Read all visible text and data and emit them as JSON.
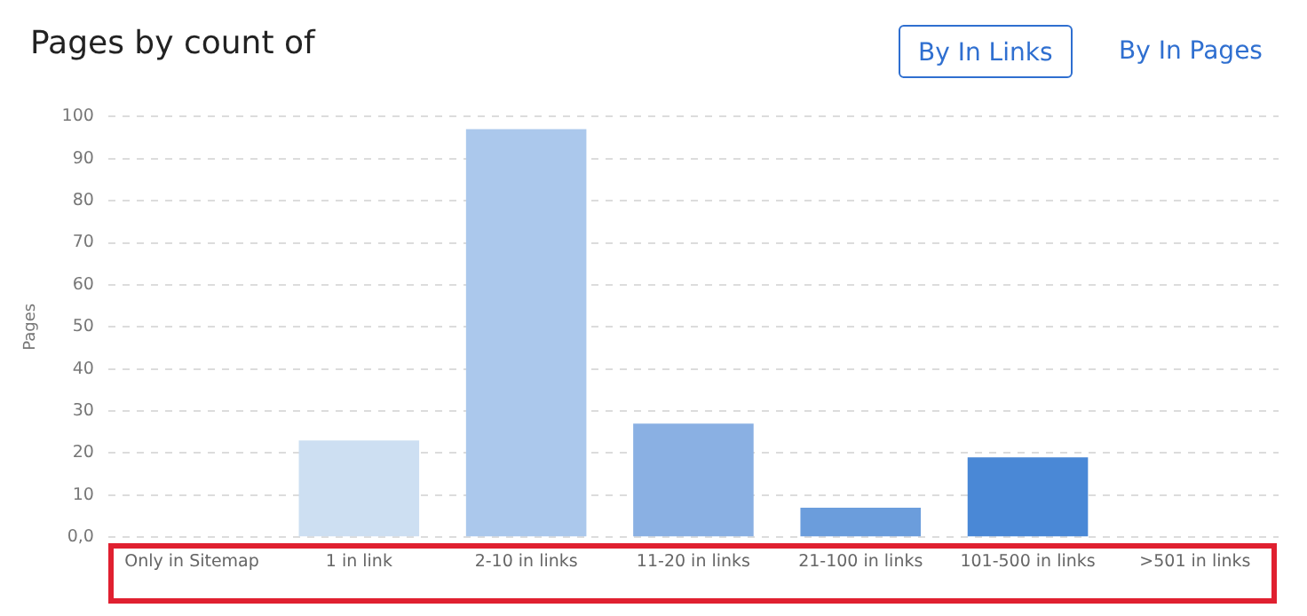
{
  "chart_data": {
    "type": "bar",
    "title": "Pages by count of",
    "ylabel": "Pages",
    "annotations": [
      "By In Links",
      "By In Pages"
    ],
    "categories": [
      "Only in Sitemap",
      "1 in link",
      "2-10 in links",
      "11-20 in links",
      "21-100 in links",
      "101-500 in links",
      ">501 in links"
    ],
    "values": [
      0,
      23,
      97,
      27,
      7,
      19,
      0
    ],
    "colors": [
      "#cddff2",
      "#cddff2",
      "#abc8ec",
      "#8ab0e3",
      "#6b9ddc",
      "#4a88d6",
      "#3a78cc"
    ],
    "ylim": [
      0,
      100
    ],
    "yticks": [
      {
        "value": 0,
        "label": "0,0"
      },
      10,
      20,
      30,
      40,
      50,
      60,
      70,
      80,
      90,
      100
    ],
    "grid": "y",
    "legend": false
  }
}
